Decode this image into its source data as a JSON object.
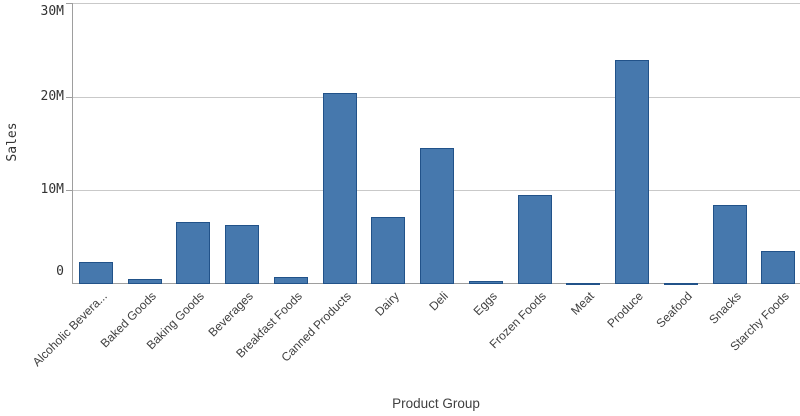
{
  "chart_data": {
    "type": "bar",
    "title": "",
    "xlabel": "Product Group",
    "ylabel": "Sales",
    "ylim": [
      0,
      30000000
    ],
    "grid": true,
    "legend": false,
    "yticks": [
      {
        "value": 0,
        "label": "0"
      },
      {
        "value": 10000000,
        "label": "10M"
      },
      {
        "value": 20000000,
        "label": "20M"
      },
      {
        "value": 30000000,
        "label": "30M"
      }
    ],
    "categories": [
      "Alcoholic Bevera...",
      "Baked Goods",
      "Baking Goods",
      "Beverages",
      "Breakfast Foods",
      "Canned Products",
      "Dairy",
      "Deli",
      "Eggs",
      "Frozen Foods",
      "Meat",
      "Produce",
      "Seafood",
      "Snacks",
      "Starchy Foods"
    ],
    "values": [
      2300000,
      500000,
      6600000,
      6300000,
      700000,
      20400000,
      7200000,
      14500000,
      300000,
      9500000,
      150000,
      24000000,
      100000,
      8500000,
      3500000
    ],
    "colors": {
      "bar_fill": "#4678ad",
      "bar_border": "#215289",
      "gridline": "#c9c9c9",
      "axis": "#9e9e9e",
      "tick_text": "#333333",
      "label_text": "#404040"
    }
  }
}
